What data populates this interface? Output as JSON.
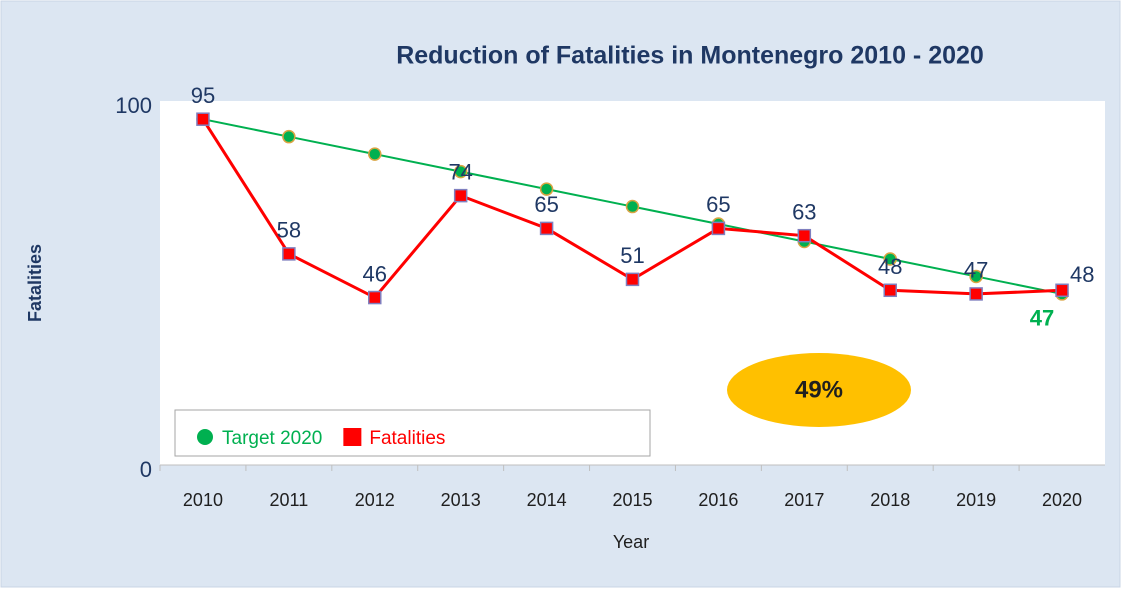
{
  "chart_data": {
    "type": "line",
    "title": "Reduction of Fatalities in Montenegro 2010 - 2020",
    "xlabel": "Year",
    "ylabel": "Fatalities",
    "categories": [
      "2010",
      "2011",
      "2012",
      "2013",
      "2014",
      "2015",
      "2016",
      "2017",
      "2018",
      "2019",
      "2020"
    ],
    "series": [
      {
        "name": "Target 2020",
        "color": "#00b050",
        "marker": "circle",
        "values": [
          95,
          90.2,
          85.4,
          80.6,
          75.8,
          71,
          66.2,
          61.4,
          56.6,
          51.8,
          47
        ]
      },
      {
        "name": "Fatalities",
        "color": "#ff0000",
        "marker": "square",
        "values": [
          95,
          58,
          46,
          74,
          65,
          51,
          65,
          63,
          48,
          47,
          48
        ]
      }
    ],
    "ylim": [
      0,
      100
    ],
    "yticks": [
      0,
      100
    ],
    "annotation": "49%",
    "legend": "lower left"
  }
}
